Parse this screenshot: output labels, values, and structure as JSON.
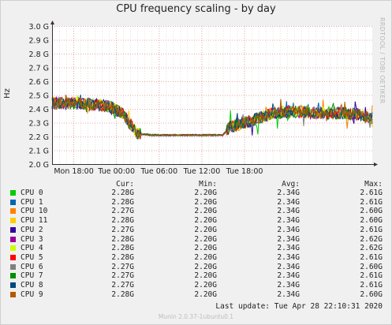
{
  "chart_data": {
    "type": "line",
    "title": "CPU frequency scaling - by day",
    "ylabel": "Hz",
    "watermark": "RRDTOOL / TOBI OETIKER",
    "ylim": [
      2.0,
      3.0
    ],
    "yticks": [
      "3.0 G",
      "2.9 G",
      "2.8 G",
      "2.7 G",
      "2.6 G",
      "2.5 G",
      "2.4 G",
      "2.3 G",
      "2.2 G",
      "2.1 G",
      "2.0 G"
    ],
    "xticks": [
      "Mon 18:00",
      "Tue 00:00",
      "Tue 06:00",
      "Tue 12:00",
      "Tue 18:00"
    ],
    "grid": true,
    "series_profile": [
      [
        0,
        2.44
      ],
      [
        4,
        2.44
      ],
      [
        8,
        2.42
      ],
      [
        10,
        2.36
      ],
      [
        12,
        2.22
      ],
      [
        14,
        2.21
      ],
      [
        16,
        2.21
      ],
      [
        18,
        2.21
      ],
      [
        20,
        2.21
      ],
      [
        22,
        2.21
      ],
      [
        24,
        2.21
      ],
      [
        25,
        2.27
      ],
      [
        27,
        2.3
      ],
      [
        29,
        2.33
      ],
      [
        31,
        2.37
      ],
      [
        33,
        2.38
      ],
      [
        35,
        2.38
      ],
      [
        37,
        2.37
      ],
      [
        39,
        2.37
      ],
      [
        41,
        2.37
      ],
      [
        43,
        2.36
      ],
      [
        45,
        2.33
      ]
    ],
    "legend_columns": [
      "Cur:",
      "Min:",
      "Avg:",
      "Max:"
    ],
    "series": [
      {
        "name": "CPU 0",
        "color": "#00cc00",
        "cur": "2.28G",
        "min": "2.20G",
        "avg": "2.34G",
        "max": "2.61G"
      },
      {
        "name": "CPU 1",
        "color": "#0066b3",
        "cur": "2.28G",
        "min": "2.20G",
        "avg": "2.34G",
        "max": "2.61G"
      },
      {
        "name": "CPU 10",
        "color": "#ff8000",
        "cur": "2.27G",
        "min": "2.20G",
        "avg": "2.34G",
        "max": "2.60G"
      },
      {
        "name": "CPU 11",
        "color": "#ffcc00",
        "cur": "2.28G",
        "min": "2.20G",
        "avg": "2.34G",
        "max": "2.60G"
      },
      {
        "name": "CPU 2",
        "color": "#330099",
        "cur": "2.27G",
        "min": "2.20G",
        "avg": "2.34G",
        "max": "2.61G"
      },
      {
        "name": "CPU 3",
        "color": "#990099",
        "cur": "2.28G",
        "min": "2.20G",
        "avg": "2.34G",
        "max": "2.62G"
      },
      {
        "name": "CPU 4",
        "color": "#ccff00",
        "cur": "2.28G",
        "min": "2.20G",
        "avg": "2.34G",
        "max": "2.62G"
      },
      {
        "name": "CPU 5",
        "color": "#ff0000",
        "cur": "2.28G",
        "min": "2.20G",
        "avg": "2.34G",
        "max": "2.61G"
      },
      {
        "name": "CPU 6",
        "color": "#808080",
        "cur": "2.27G",
        "min": "2.20G",
        "avg": "2.34G",
        "max": "2.60G"
      },
      {
        "name": "CPU 7",
        "color": "#008f00",
        "cur": "2.27G",
        "min": "2.20G",
        "avg": "2.34G",
        "max": "2.61G"
      },
      {
        "name": "CPU 8",
        "color": "#00487d",
        "cur": "2.27G",
        "min": "2.20G",
        "avg": "2.34G",
        "max": "2.61G"
      },
      {
        "name": "CPU 9",
        "color": "#b35a00",
        "cur": "2.28G",
        "min": "2.20G",
        "avg": "2.34G",
        "max": "2.60G"
      }
    ],
    "last_update": "Last update: Tue Apr 28 22:10:31 2020",
    "footer": "Munin 2.0.37-1ubuntu0.1"
  }
}
